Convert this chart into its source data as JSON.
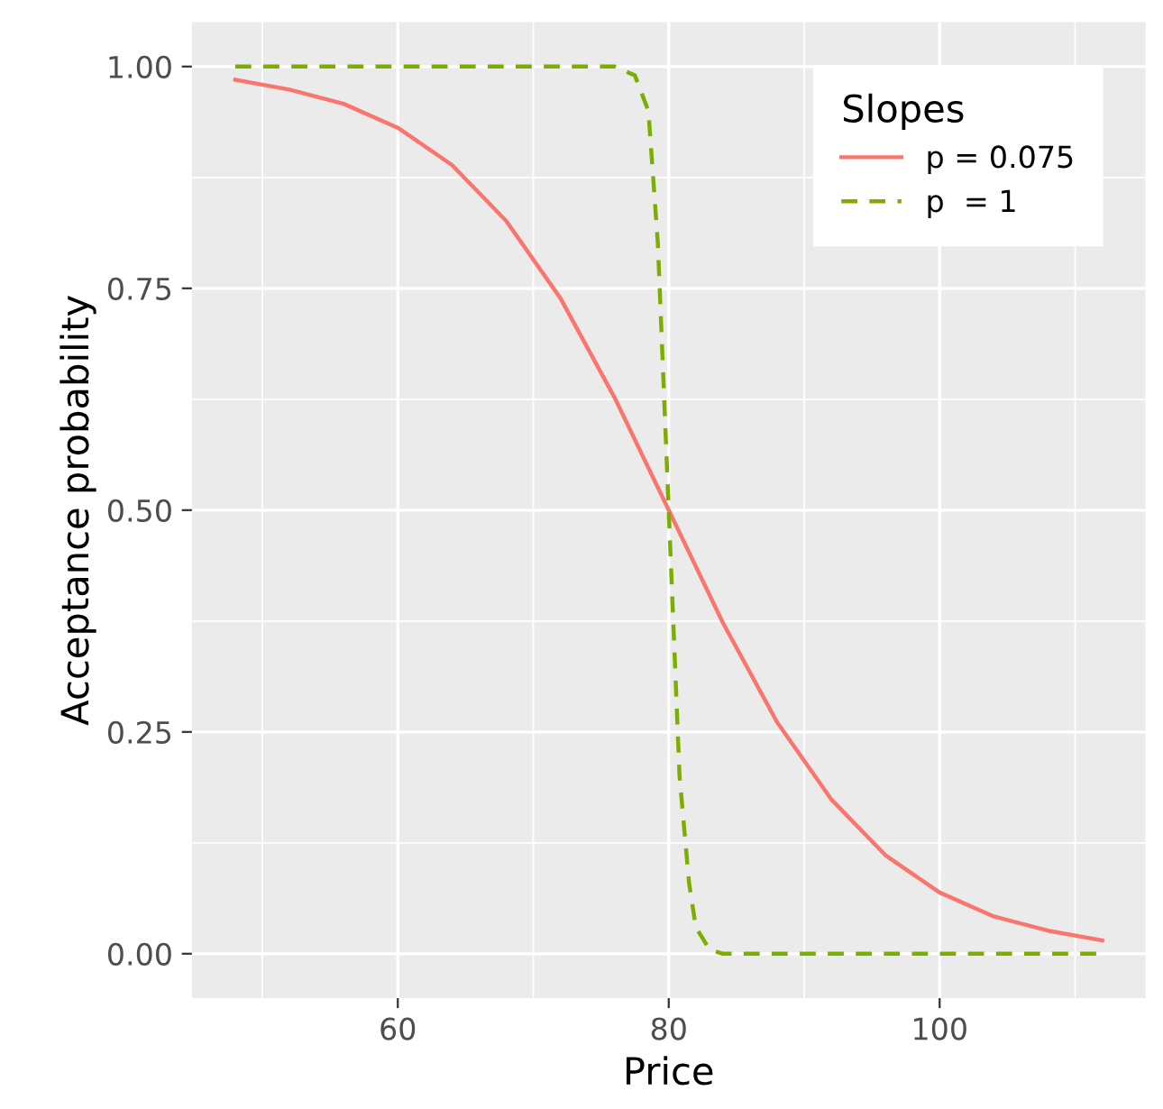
{
  "chart_data": {
    "type": "line",
    "xlabel": "Price",
    "ylabel": "Acceptance probability",
    "legend_title": "Slopes",
    "legend": "top right",
    "grid": true,
    "xlim": [
      44.8,
      115.2
    ],
    "ylim": [
      -0.05,
      1.05
    ],
    "xticks": [
      {
        "value": 50,
        "label": null
      },
      60,
      {
        "value": 70,
        "label": null
      },
      80,
      {
        "value": 90,
        "label": null
      },
      100,
      {
        "value": 110,
        "label": null
      }
    ],
    "yticks": [
      {
        "value": 0,
        "label": "0.00"
      },
      {
        "value": 0.125,
        "label": null
      },
      {
        "value": 0.25,
        "label": "0.25"
      },
      {
        "value": 0.375,
        "label": null
      },
      {
        "value": 0.5,
        "label": "0.50"
      },
      {
        "value": 0.625,
        "label": null
      },
      {
        "value": 0.75,
        "label": "0.75"
      },
      {
        "value": 0.875,
        "label": null
      },
      {
        "value": 1,
        "label": "1.00"
      }
    ],
    "series": [
      {
        "name": "p = 0.075",
        "color": "#f8766d",
        "line_style": "solid",
        "x": [
          48,
          52,
          56,
          60,
          64,
          68,
          72,
          76,
          80,
          84,
          88,
          92,
          96,
          100,
          104,
          108,
          112
        ],
        "values": [
          0.985,
          0.974,
          0.958,
          0.931,
          0.889,
          0.826,
          0.739,
          0.627,
          0.5,
          0.373,
          0.261,
          0.174,
          0.111,
          0.069,
          0.042,
          0.026,
          0.015
        ]
      },
      {
        "name": "p  = 1",
        "color": "#7cae00",
        "line_style": "dashed",
        "x": [
          48,
          76,
          77.5,
          78.5,
          79.2,
          80,
          80.8,
          81.5,
          82,
          83,
          84,
          112
        ],
        "values": [
          1,
          1,
          0.99,
          0.95,
          0.8,
          0.5,
          0.2,
          0.08,
          0.03,
          0.005,
          0,
          0
        ]
      }
    ]
  }
}
